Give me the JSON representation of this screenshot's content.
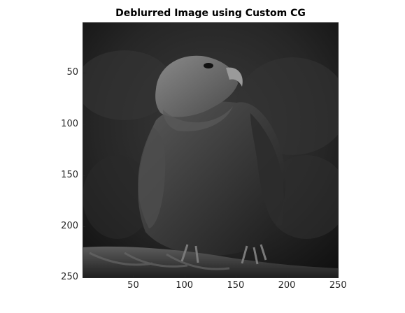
{
  "figure": {
    "title": "Deblurred Image using Custom CG",
    "image": {
      "subject": "eagle",
      "colormap": "gray",
      "pixels": [
        250,
        250
      ]
    },
    "axes": {
      "x_ticks": [
        "50",
        "100",
        "150",
        "200",
        "250"
      ],
      "y_ticks": [
        "50",
        "100",
        "150",
        "200",
        "250"
      ],
      "x_values": [
        50,
        100,
        150,
        200,
        250
      ],
      "y_values": [
        50,
        100,
        150,
        200,
        250
      ],
      "xlim": [
        0.5,
        250.5
      ],
      "ylim": [
        0.5,
        250.5
      ],
      "y_direction": "reverse"
    },
    "colors": {
      "axis": "#262626",
      "title": "#000000",
      "background": "#ffffff"
    }
  }
}
